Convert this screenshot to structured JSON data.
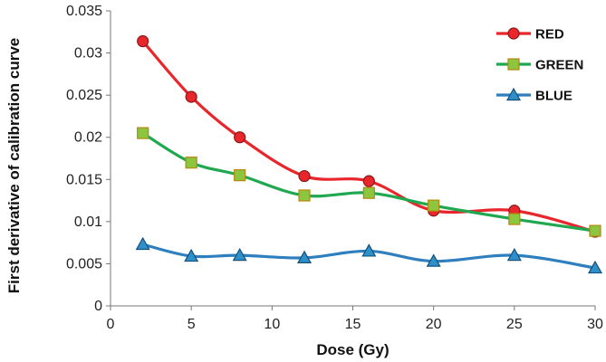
{
  "chart_data": {
    "type": "line",
    "title": "",
    "xlabel": "Dose (Gy)",
    "ylabel": "First derivative of calibration curve",
    "xlim": [
      0,
      30
    ],
    "ylim": [
      0,
      0.035
    ],
    "xticks": [
      0,
      5,
      10,
      15,
      20,
      25,
      30
    ],
    "xtick_labels": [
      "0",
      "5",
      "10",
      "15",
      "20",
      "25",
      "30"
    ],
    "yticks": [
      0,
      0.005,
      0.01,
      0.015,
      0.02,
      0.025,
      0.03,
      0.035
    ],
    "ytick_labels": [
      "0",
      "0.005",
      "0.01",
      "0.015",
      "0.02",
      "0.025",
      "0.03",
      "0.035"
    ],
    "grid": false,
    "legend_position": "top-right",
    "x": [
      2,
      5,
      8,
      12,
      16,
      20,
      25,
      30
    ],
    "series": [
      {
        "name": "RED",
        "color": "#e8262b",
        "marker": "circle",
        "values": [
          0.0314,
          0.0248,
          0.02,
          0.0154,
          0.0148,
          0.0113,
          0.0113,
          0.0088
        ]
      },
      {
        "name": "GREEN",
        "color": "#1fa84f",
        "marker": "square",
        "values": [
          0.0205,
          0.017,
          0.0155,
          0.0131,
          0.0134,
          0.0119,
          0.0103,
          0.0089
        ]
      },
      {
        "name": "BLUE",
        "color": "#2f7fbf",
        "marker": "triangle",
        "values": [
          0.0073,
          0.0059,
          0.006,
          0.0057,
          0.0065,
          0.0053,
          0.006,
          0.0045
        ]
      }
    ]
  }
}
